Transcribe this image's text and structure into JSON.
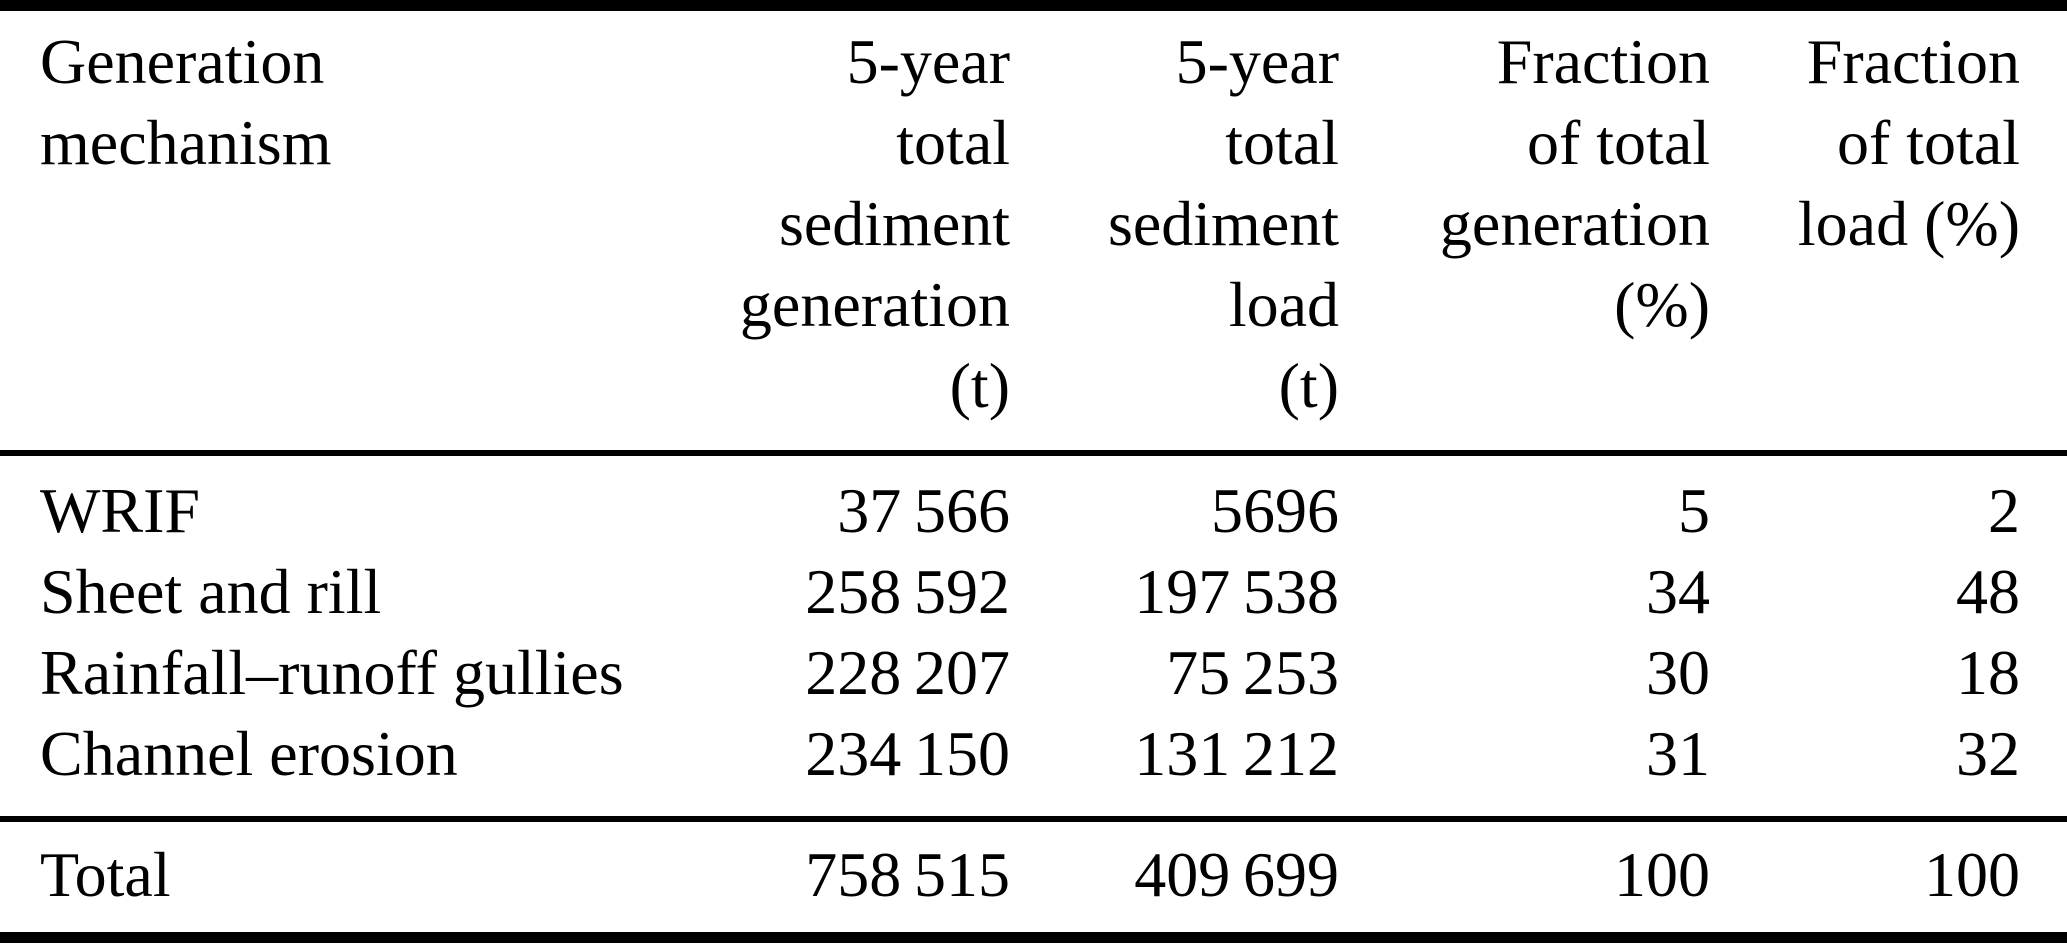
{
  "table": {
    "colors": {
      "background": "#ffffff",
      "text": "#000000",
      "rule": "#000000"
    },
    "columns": [
      {
        "label": "Generation mechanism",
        "lines": [
          "Generation",
          "mechanism"
        ]
      },
      {
        "label": "5-year total sediment generation (t)",
        "lines": [
          "5-year",
          "total",
          "sediment",
          "generation",
          "(t)"
        ]
      },
      {
        "label": "5-year total sediment load (t)",
        "lines": [
          "5-year",
          "total",
          "sediment",
          "load",
          "(t)"
        ]
      },
      {
        "label": "Fraction of total generation (%)",
        "lines": [
          "Fraction",
          "of total",
          "generation",
          "(%)"
        ]
      },
      {
        "label": "Fraction of total load (%)",
        "lines": [
          "Fraction",
          "of total",
          "load (%)"
        ]
      }
    ],
    "rows": [
      {
        "cells": [
          "WRIF",
          "37 566",
          "5696",
          "5",
          "2"
        ]
      },
      {
        "cells": [
          "Sheet and rill",
          "258 592",
          "197 538",
          "34",
          "48"
        ]
      },
      {
        "cells": [
          "Rainfall–runoff gullies",
          "228 207",
          "75 253",
          "30",
          "18"
        ]
      },
      {
        "cells": [
          "Channel erosion",
          "234 150",
          "131 212",
          "31",
          "32"
        ]
      }
    ],
    "total_row": {
      "cells": [
        "Total",
        "758 515",
        "409 699",
        "100",
        "100"
      ]
    }
  }
}
